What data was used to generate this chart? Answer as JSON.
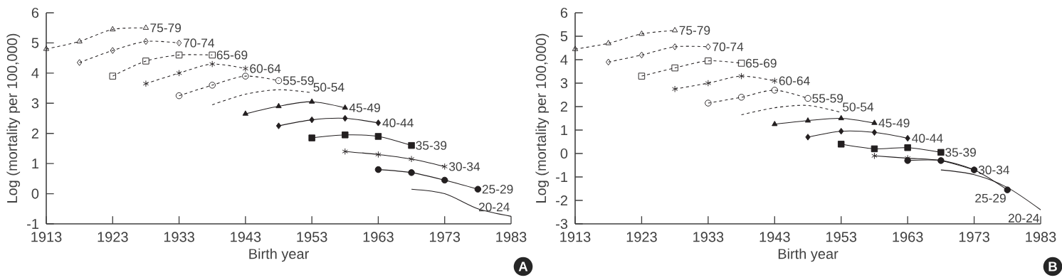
{
  "chart_data": [
    {
      "type": "line",
      "xlabel": "Birth year",
      "ylabel": "Log (mortality per 100,000)",
      "xlim": [
        1913,
        1983
      ],
      "ylim": [
        -1,
        6
      ],
      "xticks": [
        1913,
        1923,
        1933,
        1943,
        1953,
        1963,
        1973,
        1983
      ],
      "yticks": [
        -1,
        0,
        1,
        2,
        3,
        4,
        5,
        6
      ],
      "annotations": [
        "A"
      ],
      "series": [
        {
          "name": "75-79",
          "color": "#231f20",
          "marker": "triangle",
          "line_style": "dashed",
          "x": [
            1913,
            1918,
            1923,
            1928
          ],
          "values": [
            4.8,
            5.05,
            5.45,
            5.5
          ]
        },
        {
          "name": "70-74",
          "color": "#231f20",
          "marker": "diamond",
          "line_style": "dashed",
          "x": [
            1918,
            1923,
            1928,
            1933
          ],
          "values": [
            4.35,
            4.75,
            5.05,
            5.0
          ]
        },
        {
          "name": "65-69",
          "color": "#231f20",
          "marker": "square",
          "line_style": "dashed",
          "x": [
            1923,
            1928,
            1933,
            1938
          ],
          "values": [
            3.9,
            4.4,
            4.6,
            4.6
          ]
        },
        {
          "name": "60-64",
          "color": "#231f20",
          "marker": "cross",
          "line_style": "dashed",
          "x": [
            1928,
            1933,
            1938,
            1943
          ],
          "values": [
            3.65,
            4.0,
            4.3,
            4.15
          ]
        },
        {
          "name": "55-59",
          "color": "#231f20",
          "marker": "circle",
          "line_style": "dashed",
          "x": [
            1933,
            1938,
            1943,
            1948
          ],
          "values": [
            3.25,
            3.6,
            3.9,
            3.75
          ]
        },
        {
          "name": "50-54",
          "color": "#231f20",
          "marker": "none",
          "line_style": "dashed",
          "x": [
            1938,
            1943,
            1948,
            1953
          ],
          "values": [
            2.95,
            3.3,
            3.45,
            3.35
          ]
        },
        {
          "name": "45-49",
          "color": "#231f20",
          "marker": "triangle",
          "line_style": "solid",
          "x": [
            1943,
            1948,
            1953,
            1958
          ],
          "values": [
            2.65,
            2.9,
            3.05,
            2.85
          ]
        },
        {
          "name": "40-44",
          "color": "#231f20",
          "marker": "diamond",
          "line_style": "solid",
          "x": [
            1948,
            1953,
            1958,
            1963
          ],
          "values": [
            2.25,
            2.45,
            2.5,
            2.35
          ]
        },
        {
          "name": "35-39",
          "color": "#231f20",
          "marker": "square",
          "line_style": "solid",
          "x": [
            1953,
            1958,
            1963,
            1968
          ],
          "values": [
            1.85,
            1.95,
            1.9,
            1.6
          ]
        },
        {
          "name": "30-34",
          "color": "#231f20",
          "marker": "cross",
          "line_style": "solid",
          "x": [
            1958,
            1963,
            1968,
            1973
          ],
          "values": [
            1.4,
            1.3,
            1.15,
            0.9
          ]
        },
        {
          "name": "25-29",
          "color": "#231f20",
          "marker": "circle",
          "line_style": "solid",
          "x": [
            1963,
            1968,
            1973,
            1978
          ],
          "values": [
            0.8,
            0.7,
            0.45,
            0.15
          ]
        },
        {
          "name": "20-24",
          "color": "#231f20",
          "marker": "none",
          "line_style": "solid",
          "x": [
            1968,
            1973,
            1978,
            1983
          ],
          "values": [
            0.15,
            0.0,
            -0.5,
            -0.75
          ]
        }
      ]
    },
    {
      "type": "line",
      "xlabel": "Birth year",
      "ylabel": "Log (mortality per 100,000)",
      "xlim": [
        1913,
        1983
      ],
      "ylim": [
        -3,
        6
      ],
      "xticks": [
        1913,
        1923,
        1933,
        1943,
        1953,
        1963,
        1973,
        1983
      ],
      "yticks": [
        -3,
        -2,
        -1,
        0,
        1,
        2,
        3,
        4,
        5,
        6
      ],
      "annotations": [
        "B"
      ],
      "series": [
        {
          "name": "75-79",
          "color": "#231f20",
          "marker": "triangle",
          "line_style": "dashed",
          "x": [
            1913,
            1918,
            1923,
            1928
          ],
          "values": [
            4.45,
            4.7,
            5.1,
            5.25
          ]
        },
        {
          "name": "70-74",
          "color": "#231f20",
          "marker": "diamond",
          "line_style": "dashed",
          "x": [
            1918,
            1923,
            1928,
            1933
          ],
          "values": [
            3.9,
            4.2,
            4.55,
            4.55
          ]
        },
        {
          "name": "65-69",
          "color": "#231f20",
          "marker": "square",
          "line_style": "dashed",
          "x": [
            1923,
            1928,
            1933,
            1938
          ],
          "values": [
            3.3,
            3.65,
            3.95,
            3.85
          ]
        },
        {
          "name": "60-64",
          "color": "#231f20",
          "marker": "cross",
          "line_style": "dashed",
          "x": [
            1928,
            1933,
            1938,
            1943
          ],
          "values": [
            2.75,
            3.0,
            3.3,
            3.1
          ]
        },
        {
          "name": "55-59",
          "color": "#231f20",
          "marker": "circle",
          "line_style": "dashed",
          "x": [
            1933,
            1938,
            1943,
            1948
          ],
          "values": [
            2.15,
            2.4,
            2.7,
            2.35
          ]
        },
        {
          "name": "50-54",
          "color": "#231f20",
          "marker": "none",
          "line_style": "dashed",
          "x": [
            1938,
            1943,
            1948,
            1953
          ],
          "values": [
            1.65,
            1.95,
            2.05,
            1.75
          ]
        },
        {
          "name": "45-49",
          "color": "#231f20",
          "marker": "triangle",
          "line_style": "solid",
          "x": [
            1943,
            1948,
            1953,
            1958
          ],
          "values": [
            1.25,
            1.4,
            1.5,
            1.3
          ]
        },
        {
          "name": "40-44",
          "color": "#231f20",
          "marker": "diamond",
          "line_style": "solid",
          "x": [
            1948,
            1953,
            1958,
            1963
          ],
          "values": [
            0.7,
            0.95,
            0.9,
            0.65
          ]
        },
        {
          "name": "35-39",
          "color": "#231f20",
          "marker": "square",
          "line_style": "solid",
          "x": [
            1953,
            1958,
            1963,
            1968
          ],
          "values": [
            0.4,
            0.2,
            0.25,
            0.05
          ]
        },
        {
          "name": "30-34",
          "color": "#231f20",
          "marker": "cross",
          "line_style": "solid",
          "x": [
            1958,
            1963,
            1968,
            1973
          ],
          "values": [
            -0.1,
            -0.2,
            -0.3,
            -0.7
          ]
        },
        {
          "name": "25-29",
          "color": "#231f20",
          "marker": "circle",
          "line_style": "solid",
          "x": [
            1963,
            1968,
            1973,
            1978
          ],
          "values": [
            -0.3,
            -0.3,
            -0.7,
            -1.55
          ]
        },
        {
          "name": "20-24",
          "color": "#231f20",
          "marker": "none",
          "line_style": "solid",
          "x": [
            1968,
            1973,
            1978,
            1983
          ],
          "values": [
            -0.7,
            -0.9,
            -1.45,
            -2.4
          ]
        }
      ]
    }
  ]
}
